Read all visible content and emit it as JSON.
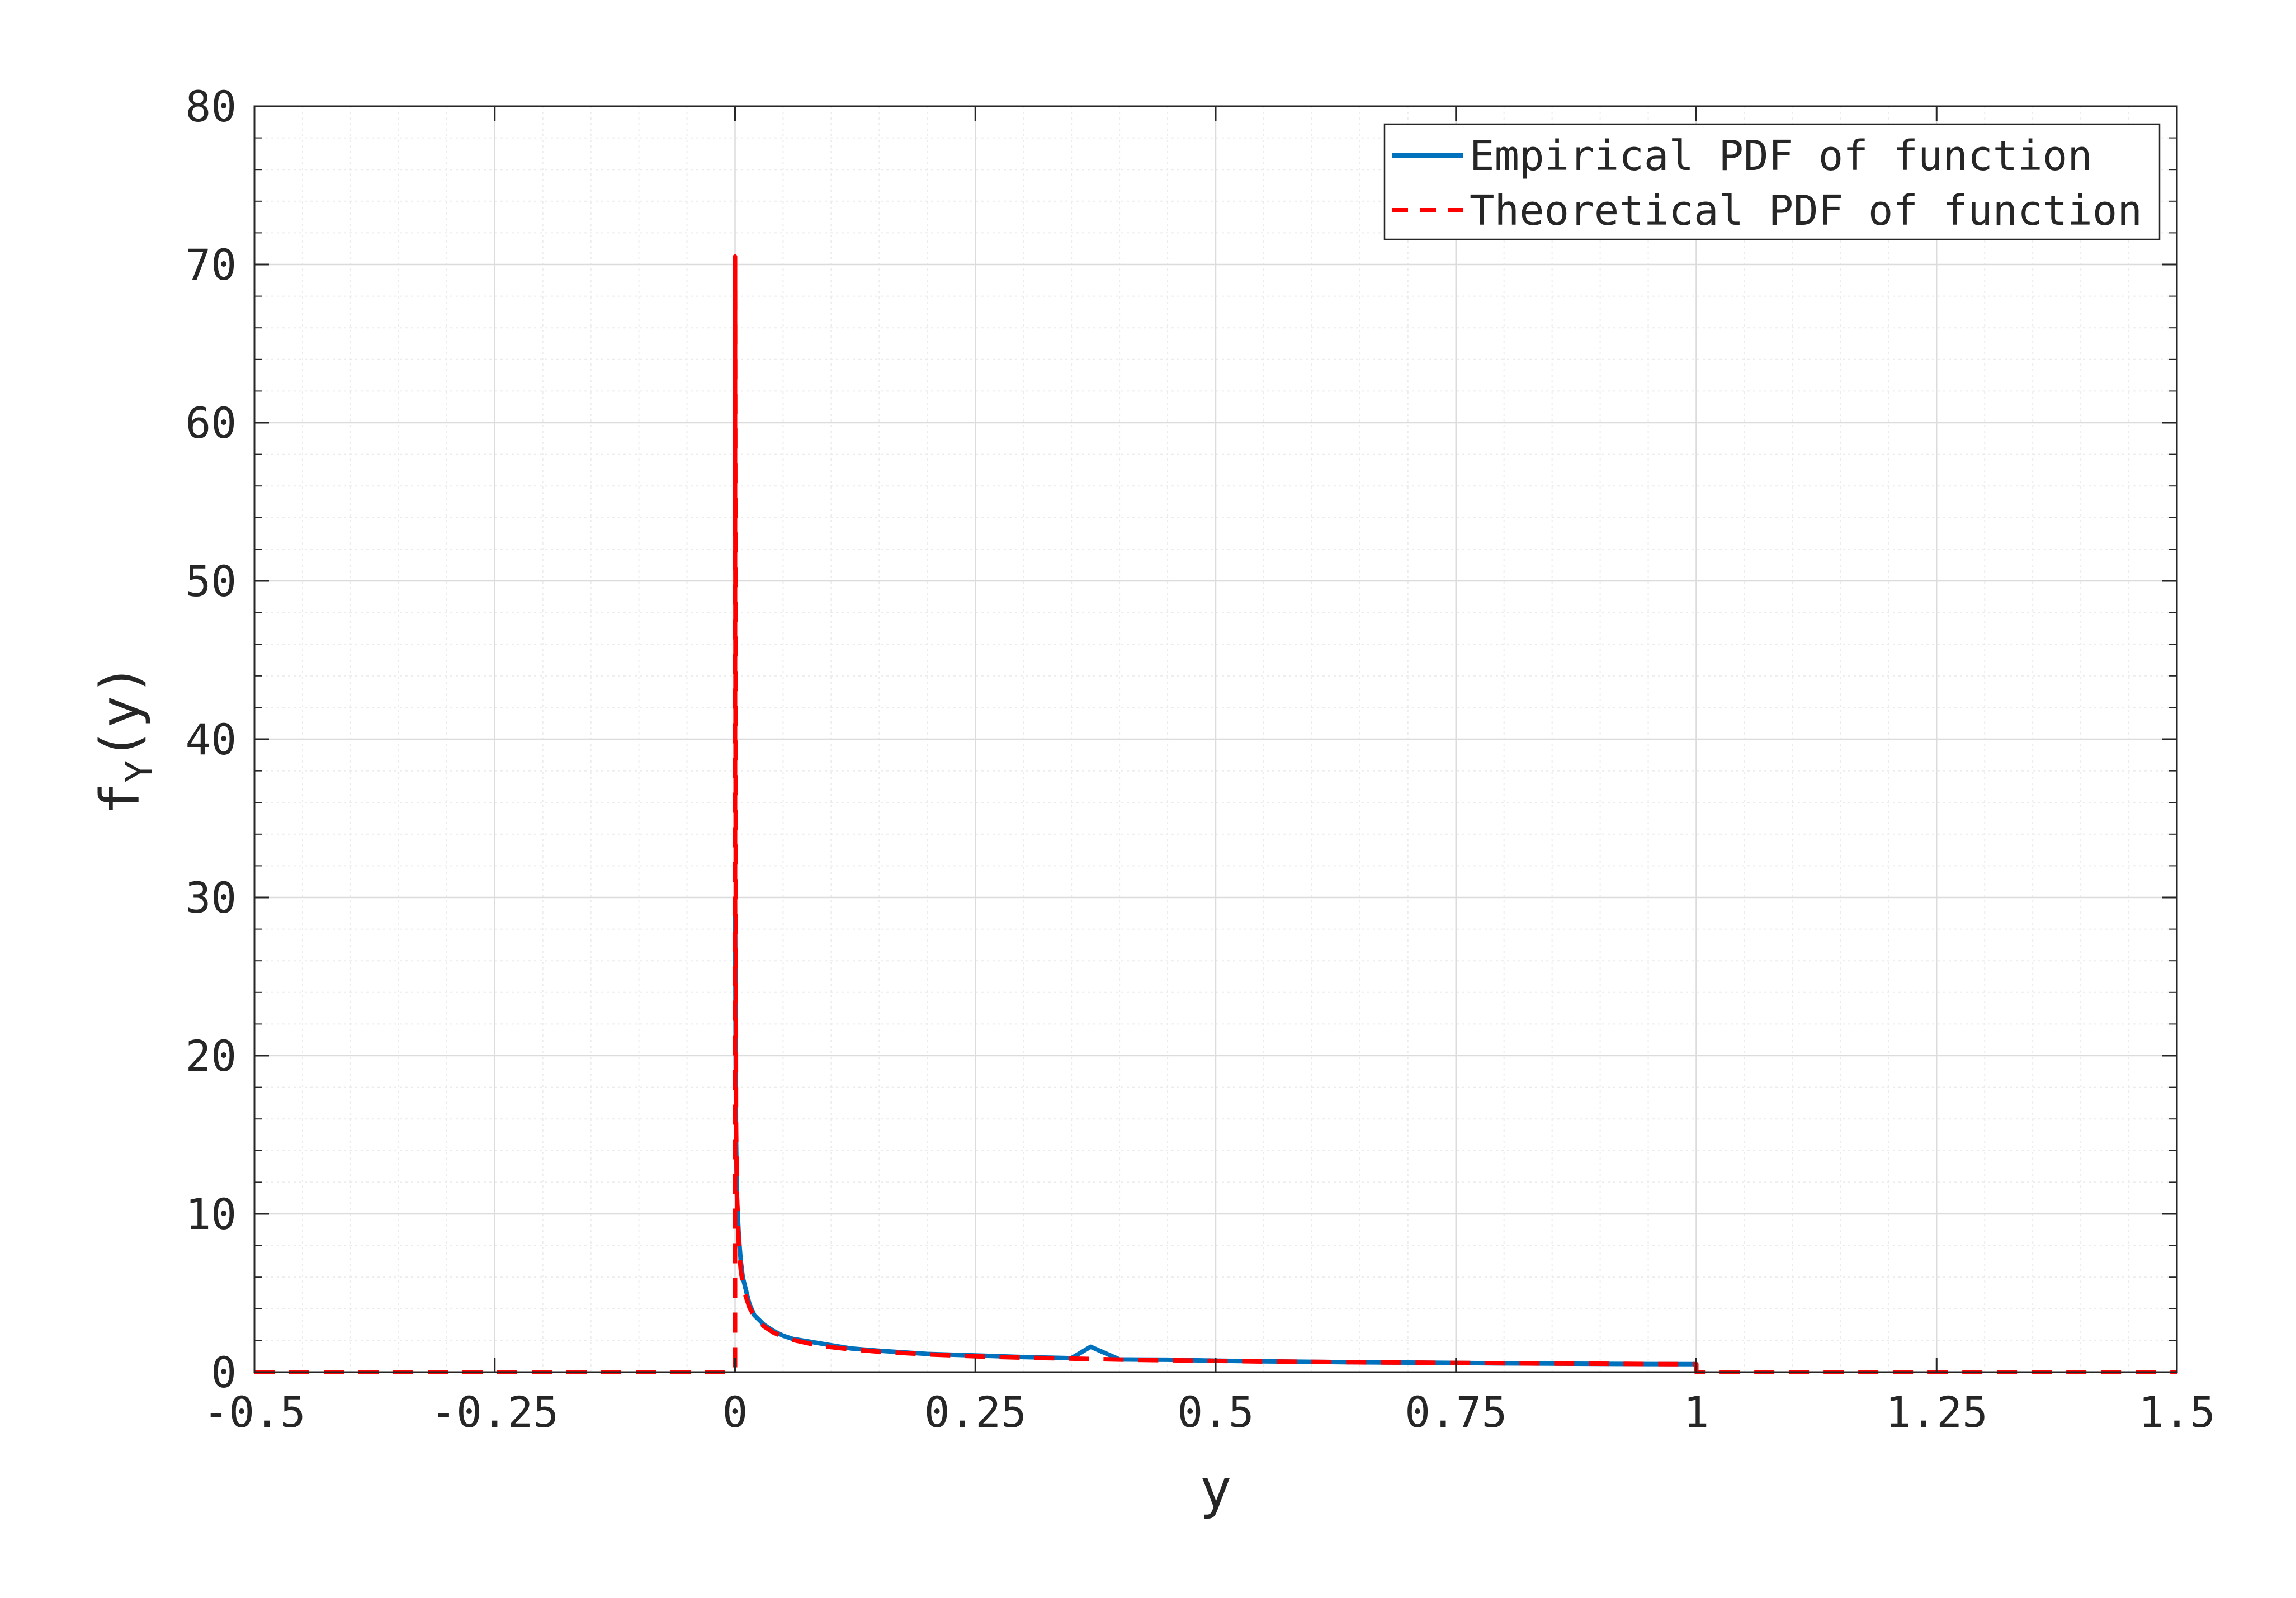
{
  "chart_data": {
    "type": "line",
    "title": "",
    "xlabel": "y",
    "ylabel_main": "f",
    "ylabel_sub": "Y",
    "ylabel_arg": "(y)",
    "xlim": [
      -0.5,
      1.5
    ],
    "ylim": [
      0,
      80
    ],
    "xticks": [
      -0.5,
      -0.25,
      0,
      0.25,
      0.5,
      0.75,
      1,
      1.25,
      1.5
    ],
    "xtick_labels": [
      "-0.5",
      "-0.25",
      "0",
      "0.25",
      "0.5",
      "0.75",
      "1",
      "1.25",
      "1.5"
    ],
    "yticks": [
      0,
      10,
      20,
      30,
      40,
      50,
      60,
      70,
      80
    ],
    "ytick_labels": [
      "0",
      "10",
      "20",
      "30",
      "40",
      "50",
      "60",
      "70",
      "80"
    ],
    "grid": true,
    "minor_grid": true,
    "legend_position": "top-right",
    "series": [
      {
        "name": "Empirical PDF of function",
        "style": "solid",
        "color": "#0072BD",
        "x": [
          0,
          0.001,
          0.002,
          0.004,
          0.006,
          0.008,
          0.01,
          0.015,
          0.02,
          0.03,
          0.04,
          0.05,
          0.06,
          0.08,
          0.1,
          0.12,
          0.15,
          0.2,
          0.25,
          0.3,
          0.35,
          0.37,
          0.4,
          0.45,
          0.5,
          0.55,
          0.6,
          0.65,
          0.7,
          0.75,
          0.8,
          0.85,
          0.9,
          0.95,
          1.0
        ],
        "y": [
          30,
          15,
          11,
          8.5,
          7,
          6,
          5.5,
          4.3,
          3.6,
          3.0,
          2.6,
          2.3,
          2.1,
          1.9,
          1.7,
          1.5,
          1.35,
          1.15,
          1.05,
          0.95,
          0.88,
          1.6,
          0.8,
          0.78,
          0.72,
          0.68,
          0.65,
          0.62,
          0.6,
          0.58,
          0.55,
          0.54,
          0.52,
          0.51,
          0.5
        ]
      },
      {
        "name": "Theoretical PDF of function",
        "style": "dashed",
        "color": "#FF0000",
        "x": [
          -0.5,
          0,
          0,
          0.001,
          0.002,
          0.004,
          0.006,
          0.008,
          0.01,
          0.015,
          0.02,
          0.03,
          0.04,
          0.05,
          0.06,
          0.08,
          0.1,
          0.12,
          0.15,
          0.2,
          0.25,
          0.3,
          0.35,
          0.4,
          0.45,
          0.5,
          0.55,
          0.6,
          0.65,
          0.7,
          0.75,
          0.8,
          0.85,
          0.9,
          0.95,
          1.0,
          1.0,
          1.5
        ],
        "y": [
          0,
          0,
          70.5,
          15.8,
          11.2,
          7.9,
          6.45,
          5.59,
          5.0,
          4.08,
          3.54,
          2.89,
          2.5,
          2.24,
          2.04,
          1.77,
          1.58,
          1.44,
          1.29,
          1.12,
          1.0,
          0.91,
          0.85,
          0.79,
          0.75,
          0.71,
          0.67,
          0.65,
          0.62,
          0.6,
          0.58,
          0.56,
          0.54,
          0.53,
          0.51,
          0.5,
          0,
          0
        ]
      }
    ]
  },
  "colors": {
    "axis": "#262626",
    "grid": "#dcdcdc",
    "minor_grid": "#ececec",
    "background": "#ffffff"
  }
}
